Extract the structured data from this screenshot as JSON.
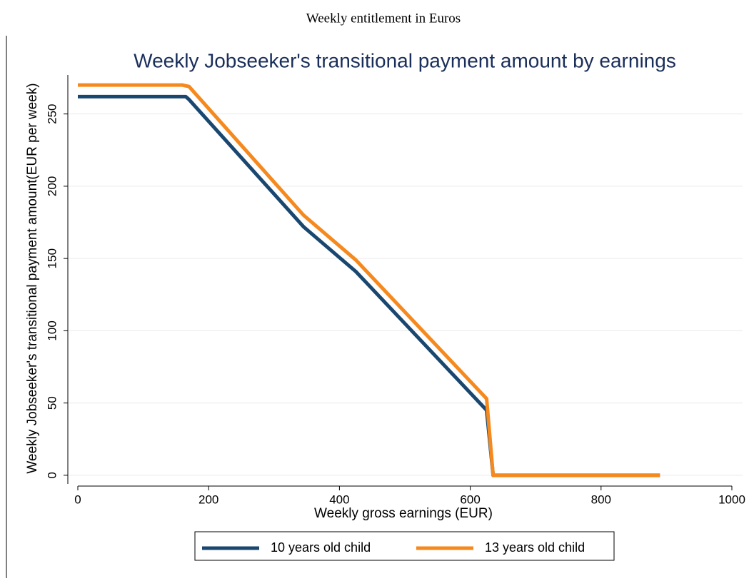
{
  "header": "Weekly entitlement in Euros",
  "chart_data": {
    "type": "line",
    "title": "Weekly Jobseeker's transitional payment amount by earnings",
    "x_label": "Weekly gross earnings (EUR)",
    "y_label": "Weekly Jobseeker's transitional payment amount(EUR per week)",
    "xlim": [
      0,
      1000
    ],
    "xticks": [
      0,
      200,
      400,
      600,
      800,
      1000
    ],
    "ylim": [
      -6,
      277
    ],
    "yticks": [
      0,
      50,
      100,
      150,
      200,
      250
    ],
    "grid": true,
    "legend": "bottom",
    "series": [
      {
        "name": "10 years old child",
        "color": "#1a476f",
        "x": [
          0,
          165,
          170,
          345,
          425,
          625,
          635,
          890
        ],
        "values": [
          262,
          262,
          260,
          172,
          141,
          45,
          0,
          0
        ]
      },
      {
        "name": "13 years old child",
        "color": "#f5891e",
        "x": [
          0,
          160,
          170,
          345,
          425,
          625,
          635,
          890
        ],
        "values": [
          270,
          270,
          269,
          180,
          149,
          53,
          0,
          0
        ]
      }
    ]
  }
}
